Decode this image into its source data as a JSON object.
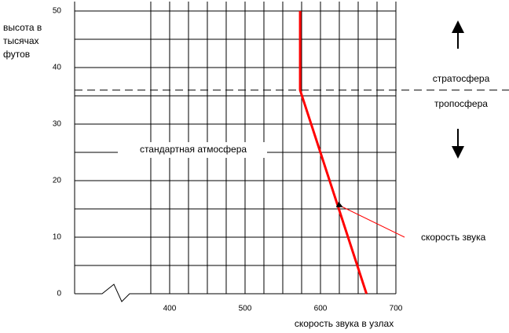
{
  "chart_data": {
    "type": "line",
    "y_label": [
      "высота в",
      "тысячах",
      "футов"
    ],
    "x_label": "скорость звука в узлах",
    "x": [
      661,
      573,
      573
    ],
    "series": [
      {
        "name": "скорость звука",
        "color": "#ff0000",
        "values": [
          0,
          36,
          50
        ]
      }
    ],
    "xlim": [
      274,
      700
    ],
    "ylim": [
      0,
      50
    ],
    "xticks": [
      400,
      500,
      600,
      700
    ],
    "yticks": [
      0,
      10,
      20,
      30,
      40,
      50
    ],
    "xgrid": [
      375,
      400,
      425,
      450,
      475,
      500,
      525,
      550,
      575,
      600,
      625,
      650,
      675,
      700
    ],
    "ygrid": [
      0,
      5,
      10,
      15,
      20,
      25,
      30,
      35,
      40,
      45,
      50
    ],
    "tropopause": 36,
    "upper_label": "стратосфера",
    "lower_label": "тропосфера",
    "grid_label": "стандартная атмосфера",
    "grid": true
  }
}
